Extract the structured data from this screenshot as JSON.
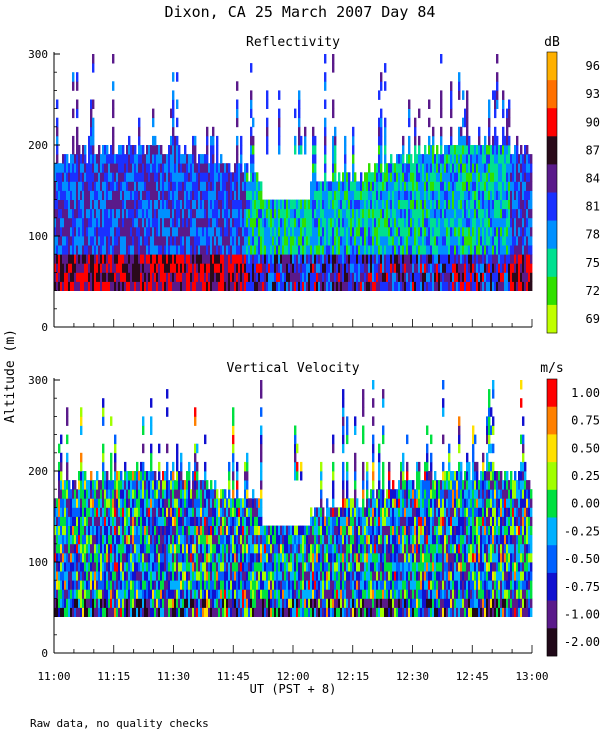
{
  "title": "Dixon, CA 25 March 2007  Day  84",
  "footer_note": "Raw data, no quality checks",
  "y_axis_label": "Altitude (m)",
  "x_axis_label": "UT  (PST + 8)",
  "chart_data": [
    {
      "type": "heatmap",
      "panel_title": "Reflectivity",
      "unit": "dB",
      "x_ticks": [
        "11:00",
        "11:15",
        "11:30",
        "11:45",
        "12:00",
        "12:15",
        "12:30",
        "12:45",
        "13:00"
      ],
      "x_range_minutes": [
        0,
        120
      ],
      "ylim": [
        0,
        300
      ],
      "y_ticks": [
        "0",
        "100",
        "200",
        "300"
      ],
      "data_altitude_range_m": [
        40,
        300
      ],
      "colorbar": {
        "labels": [
          "96",
          "93",
          "90",
          "87",
          "84",
          "81",
          "78",
          "75",
          "72",
          "69"
        ],
        "values": [
          96,
          93,
          90,
          87,
          84,
          81,
          78,
          75,
          72,
          69
        ],
        "colors": [
          "#ffb000",
          "#ff7000",
          "#ff0000",
          "#2a0a1a",
          "#5a1a8a",
          "#1a30ff",
          "#0090ff",
          "#00e090",
          "#30e000",
          "#c0ff00"
        ]
      }
    },
    {
      "type": "heatmap",
      "panel_title": "Vertical Velocity",
      "unit": "m/s",
      "x_ticks": [
        "11:00",
        "11:15",
        "11:30",
        "11:45",
        "12:00",
        "12:15",
        "12:30",
        "12:45",
        "13:00"
      ],
      "x_range_minutes": [
        0,
        120
      ],
      "ylim": [
        0,
        300
      ],
      "y_ticks": [
        "0",
        "100",
        "200",
        "300"
      ],
      "data_altitude_range_m": [
        40,
        300
      ],
      "colorbar": {
        "labels": [
          "1.00",
          "0.75",
          "0.50",
          "0.25",
          "0.00",
          "-0.25",
          "-0.50",
          "-0.75",
          "-1.00",
          "-2.00"
        ],
        "values": [
          1.0,
          0.75,
          0.5,
          0.25,
          0.0,
          -0.25,
          -0.5,
          -0.75,
          -1.0,
          -2.0
        ],
        "colors": [
          "#ff0000",
          "#ff8000",
          "#ffe000",
          "#a0ff00",
          "#00e040",
          "#00b0ff",
          "#0060ff",
          "#1010d0",
          "#5a1a8a",
          "#200818"
        ]
      }
    }
  ]
}
